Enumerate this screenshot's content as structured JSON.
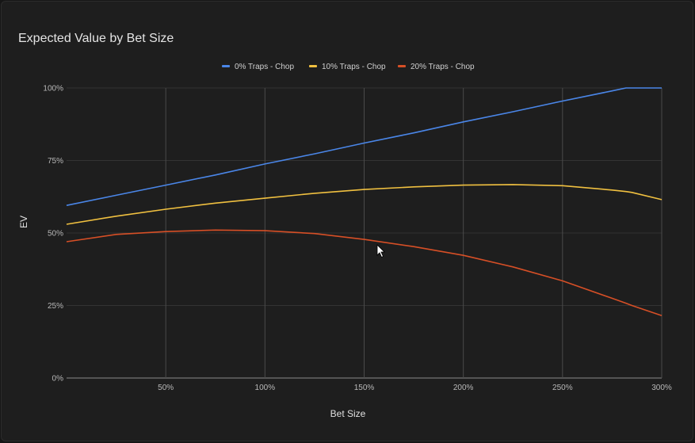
{
  "chart_data": {
    "type": "line",
    "title": "Expected Value by Bet Size",
    "xlabel": "Bet Size",
    "ylabel": "EV",
    "xlim": [
      0,
      300
    ],
    "ylim": [
      0,
      100
    ],
    "x_ticks": [
      50,
      100,
      150,
      200,
      250,
      300
    ],
    "x_tick_labels": [
      "50%",
      "100%",
      "150%",
      "200%",
      "250%",
      "300%"
    ],
    "y_ticks": [
      0,
      25,
      50,
      75,
      100
    ],
    "y_tick_labels": [
      "0%",
      "25%",
      "50%",
      "75%",
      "100%"
    ],
    "grid": true,
    "legend_position": "top-center",
    "x": [
      0,
      25,
      50,
      75,
      100,
      125,
      150,
      175,
      200,
      225,
      250,
      275,
      282,
      285,
      300
    ],
    "series": [
      {
        "name": "0% Traps - Chop",
        "color": "#4a86e8",
        "values": [
          59.5,
          63,
          66.5,
          70,
          73.8,
          77.3,
          81,
          84.5,
          88.3,
          91.8,
          95.5,
          99,
          100,
          100,
          100
        ]
      },
      {
        "name": "10% Traps - Chop",
        "color": "#f0c040",
        "values": [
          53,
          55.8,
          58.2,
          60.3,
          62,
          63.7,
          65,
          65.9,
          66.5,
          66.7,
          66.3,
          64.8,
          64.3,
          64,
          61.5
        ]
      },
      {
        "name": "20% Traps - Chop",
        "color": "#d64f26",
        "values": [
          47,
          49.5,
          50.5,
          51,
          50.8,
          49.8,
          47.8,
          45.3,
          42.3,
          38.3,
          33.5,
          27.5,
          25.8,
          25,
          21.5
        ]
      }
    ]
  }
}
